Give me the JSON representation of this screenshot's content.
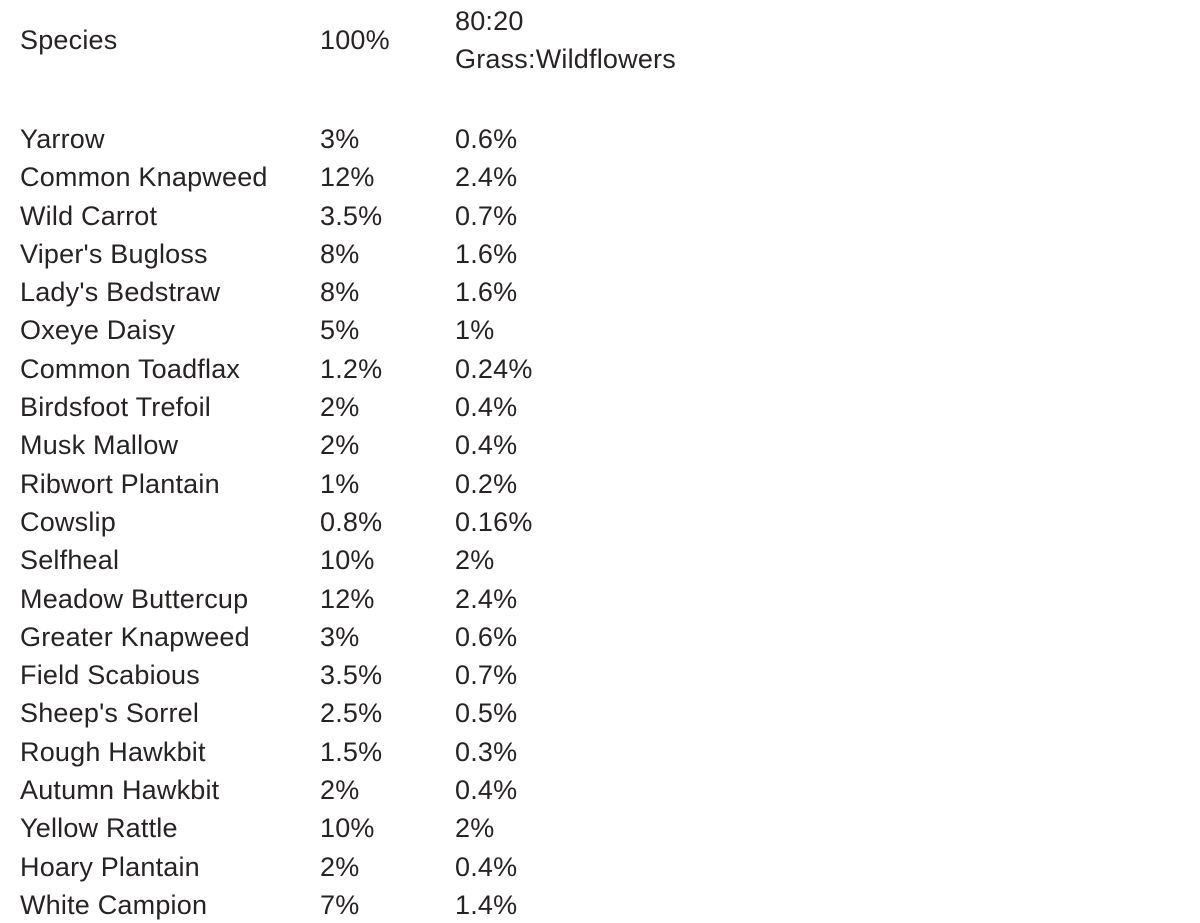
{
  "colors": {
    "background": "#ffffff",
    "text": "#272323"
  },
  "table": {
    "header": {
      "species": "Species",
      "rate_100": "100%",
      "rate_mix_line1": "80:20",
      "rate_mix_line2": "Grass:Wildflowers"
    },
    "rows": [
      {
        "species": "Yarrow",
        "rate_100": "3%",
        "rate_mix": "0.6%"
      },
      {
        "species": "Common Knapweed",
        "rate_100": "12%",
        "rate_mix": "2.4%"
      },
      {
        "species": "Wild Carrot",
        "rate_100": "3.5%",
        "rate_mix": "0.7%"
      },
      {
        "species": "Viper's Bugloss",
        "rate_100": "8%",
        "rate_mix": "1.6%"
      },
      {
        "species": "Lady's Bedstraw",
        "rate_100": "8%",
        "rate_mix": "1.6%"
      },
      {
        "species": "Oxeye Daisy",
        "rate_100": "5%",
        "rate_mix": "1%"
      },
      {
        "species": "Common Toadflax",
        "rate_100": "1.2%",
        "rate_mix": "0.24%"
      },
      {
        "species": "Birdsfoot Trefoil",
        "rate_100": "2%",
        "rate_mix": "0.4%"
      },
      {
        "species": "Musk Mallow",
        "rate_100": "2%",
        "rate_mix": "0.4%"
      },
      {
        "species": "Ribwort Plantain",
        "rate_100": "1%",
        "rate_mix": "0.2%"
      },
      {
        "species": "Cowslip",
        "rate_100": "0.8%",
        "rate_mix": "0.16%"
      },
      {
        "species": "Selfheal",
        "rate_100": "10%",
        "rate_mix": "2%"
      },
      {
        "species": "Meadow Buttercup",
        "rate_100": "12%",
        "rate_mix": "2.4%"
      },
      {
        "species": "Greater Knapweed",
        "rate_100": "3%",
        "rate_mix": "0.6%"
      },
      {
        "species": "Field Scabious",
        "rate_100": "3.5%",
        "rate_mix": "0.7%"
      },
      {
        "species": "Sheep's Sorrel",
        "rate_100": "2.5%",
        "rate_mix": "0.5%"
      },
      {
        "species": "Rough Hawkbit",
        "rate_100": "1.5%",
        "rate_mix": "0.3%"
      },
      {
        "species": "Autumn Hawkbit",
        "rate_100": "2%",
        "rate_mix": "0.4%"
      },
      {
        "species": "Yellow Rattle",
        "rate_100": "10%",
        "rate_mix": "2%"
      },
      {
        "species": "Hoary Plantain",
        "rate_100": "2%",
        "rate_mix": "0.4%"
      },
      {
        "species": "White Campion",
        "rate_100": "7%",
        "rate_mix": "1.4%"
      }
    ]
  }
}
